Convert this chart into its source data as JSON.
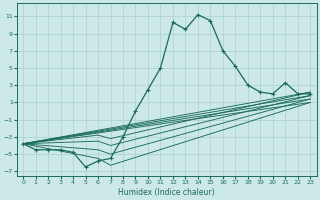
{
  "xlabel": "Humidex (Indice chaleur)",
  "xlim": [
    -0.5,
    23.5
  ],
  "ylim": [
    -7.5,
    12.5
  ],
  "xticks": [
    0,
    1,
    2,
    3,
    4,
    5,
    6,
    7,
    8,
    9,
    10,
    11,
    12,
    13,
    14,
    15,
    16,
    17,
    18,
    19,
    20,
    21,
    22,
    23
  ],
  "yticks": [
    -7,
    -5,
    -3,
    -1,
    1,
    3,
    5,
    7,
    9,
    11
  ],
  "bg_color": "#cce8e8",
  "line_color": "#1a6b5a",
  "grid_color": "#aacfcf",
  "main_curve": [
    [
      0,
      -3.8
    ],
    [
      1,
      -4.5
    ],
    [
      2,
      -4.5
    ],
    [
      3,
      -4.5
    ],
    [
      4,
      -4.8
    ],
    [
      5,
      -6.5
    ],
    [
      6,
      -5.8
    ],
    [
      7,
      -5.5
    ],
    [
      8,
      -3.0
    ],
    [
      9,
      0.0
    ],
    [
      10,
      2.5
    ],
    [
      11,
      5.0
    ],
    [
      12,
      10.3
    ],
    [
      13,
      9.5
    ],
    [
      14,
      11.2
    ],
    [
      15,
      10.5
    ],
    [
      16,
      7.0
    ],
    [
      17,
      5.2
    ],
    [
      18,
      3.0
    ],
    [
      19,
      2.2
    ],
    [
      20,
      2.0
    ],
    [
      21,
      3.3
    ],
    [
      22,
      2.0
    ],
    [
      23,
      2.0
    ]
  ],
  "trend_lines": [
    [
      [
        0,
        -3.8
      ],
      [
        23,
        2.2
      ]
    ],
    [
      [
        0,
        -3.8
      ],
      [
        23,
        1.8
      ]
    ],
    [
      [
        0,
        -3.8
      ],
      [
        23,
        1.4
      ]
    ],
    [
      [
        0,
        -3.8
      ],
      [
        23,
        1.0
      ]
    ]
  ],
  "dip_lines": [
    [
      [
        0,
        -3.8
      ],
      [
        6,
        -2.8
      ],
      [
        7,
        -3.2
      ],
      [
        23,
        2.2
      ]
    ],
    [
      [
        0,
        -3.8
      ],
      [
        6,
        -3.5
      ],
      [
        7,
        -4.0
      ],
      [
        23,
        1.8
      ]
    ],
    [
      [
        0,
        -3.8
      ],
      [
        6,
        -4.5
      ],
      [
        7,
        -5.0
      ],
      [
        23,
        1.4
      ]
    ],
    [
      [
        0,
        -3.8
      ],
      [
        6,
        -5.5
      ],
      [
        7,
        -6.3
      ],
      [
        23,
        1.0
      ]
    ]
  ]
}
